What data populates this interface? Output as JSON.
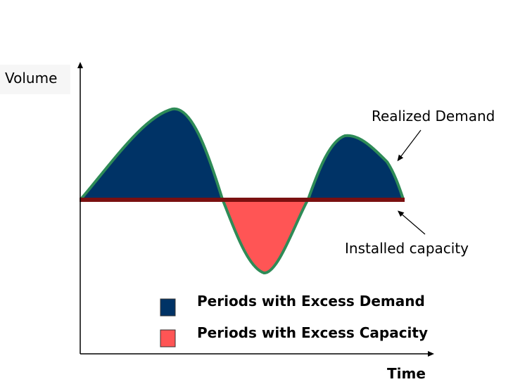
{
  "labels": {
    "y_axis": "Volume",
    "x_axis": "Time",
    "realized_demand": "Realized Demand",
    "installed_capacity": "Installed capacity"
  },
  "legend": [
    {
      "label": "Periods with Excess Demand",
      "color": "#003366"
    },
    {
      "label": "Periods with Excess Capacity",
      "color": "#ff5555"
    }
  ],
  "colors": {
    "excess_demand_fill": "#003366",
    "excess_capacity_fill": "#ff5555",
    "demand_curve": "#2e8b57",
    "capacity_line": "#7a1010",
    "axes": "#000000"
  }
}
